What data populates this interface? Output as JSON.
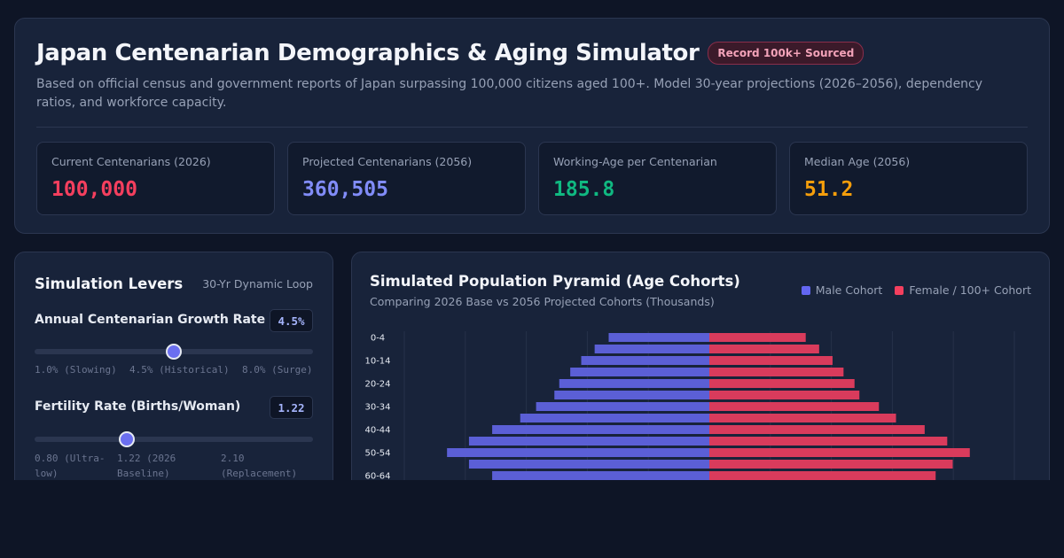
{
  "header": {
    "title": "Japan Centenarian Demographics & Aging Simulator",
    "badge": "Record 100k+ Sourced",
    "description": "Based on official census and government reports of Japan surpassing 100,000 citizens aged 100+. Model 30-year projections (2026–2056), dependency ratios, and workforce capacity."
  },
  "stats": [
    {
      "label": "Current Centenarians (2026)",
      "value": "100,000",
      "color": "#f43f5e"
    },
    {
      "label": "Projected Centenarians (2056)",
      "value": "360,505",
      "color": "#818cf8"
    },
    {
      "label": "Working-Age per Centenarian",
      "value": "185.8",
      "color": "#10b981"
    },
    {
      "label": "Median Age (2056)",
      "value": "51.2",
      "color": "#f59e0b"
    }
  ],
  "levers": {
    "title": "Simulation Levers",
    "tag": "30-Yr Dynamic Loop",
    "growth": {
      "label": "Annual Centenarian Growth Rate",
      "value": "4.5%",
      "position": 0.5,
      "ticks": [
        "1.0% (Slowing)",
        "4.5% (Historical)",
        "8.0% (Surge)"
      ]
    },
    "fertility": {
      "label": "Fertility Rate (Births/Woman)",
      "value": "1.22",
      "position": 0.32,
      "ticks": [
        "0.80 (Ultra-low)",
        "1.22 (2026 Baseline)",
        "2.10 (Replacement)"
      ]
    }
  },
  "chart": {
    "title": "Simulated Population Pyramid (Age Cohorts)",
    "subtitle": "Comparing 2026 Base vs 2056 Projected Cohorts (Thousands)",
    "legend_male": "Male Cohort",
    "legend_female": "Female / 100+ Cohort",
    "male_color": "#5b5fd6",
    "female_color": "#d93b5c"
  },
  "chart_data": {
    "type": "bar",
    "categories": [
      "0-4",
      "5-9",
      "10-14",
      "15-19",
      "20-24",
      "25-29",
      "30-34",
      "35-39",
      "40-44",
      "45-49",
      "50-54",
      "55-59",
      "60-64"
    ],
    "category_labels_shown": [
      "0-4",
      "10-14",
      "20-24",
      "30-34",
      "40-44",
      "50-54",
      "60-64"
    ],
    "series": [
      {
        "name": "Male Cohort",
        "values": [
          1650,
          1880,
          2100,
          2280,
          2460,
          2540,
          2840,
          3100,
          3560,
          3940,
          4300,
          3940,
          3560
        ]
      },
      {
        "name": "Female / 100+ Cohort",
        "values": [
          1580,
          1800,
          2020,
          2200,
          2380,
          2460,
          2780,
          3060,
          3530,
          3900,
          4270,
          3990,
          3710
        ]
      }
    ],
    "xlim": [
      -5000,
      5000
    ],
    "grid": true
  }
}
